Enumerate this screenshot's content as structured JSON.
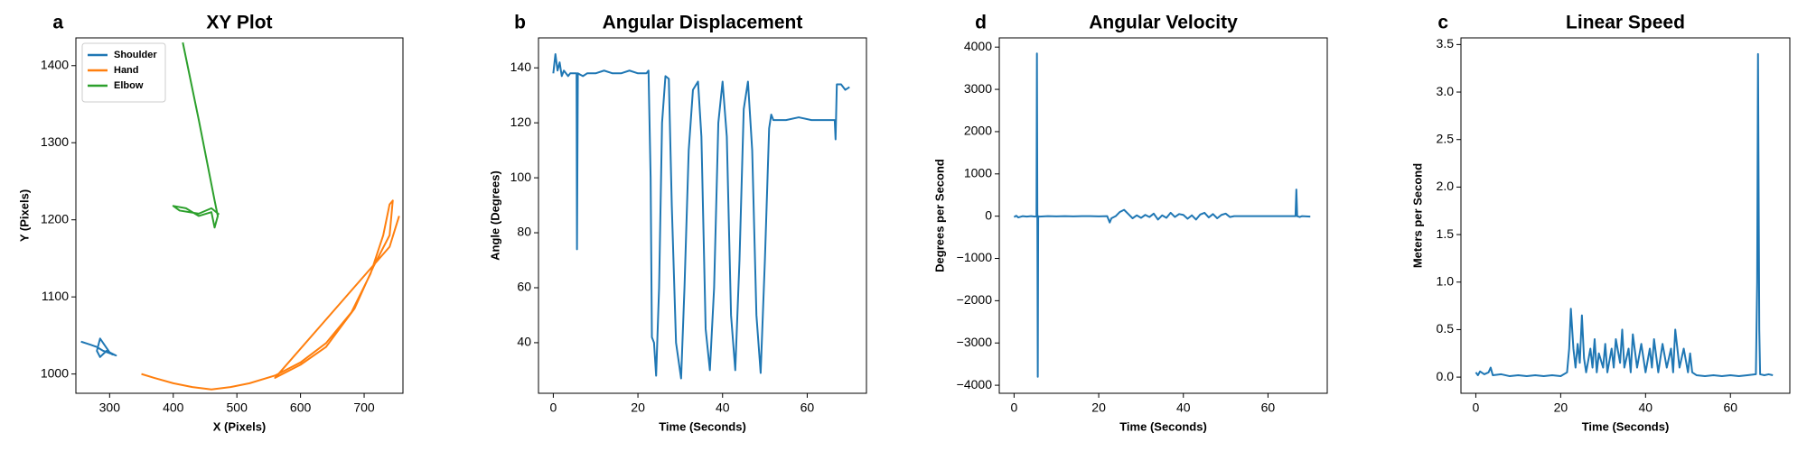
{
  "chart_data": [
    {
      "type": "line",
      "panel_label": "a",
      "title": "XY Plot",
      "xlabel": "X (Pixels)",
      "ylabel": "Y (Pixels)",
      "xlim": [
        247,
        761
      ],
      "ylim": [
        975,
        1436
      ],
      "xticks": [
        300,
        400,
        500,
        600,
        700
      ],
      "yticks": [
        1000,
        1100,
        1200,
        1300,
        1400
      ],
      "legend": "upper left",
      "series": [
        {
          "name": "Shoulder",
          "color": "#1f77b4",
          "x": [
            255,
            270,
            280,
            290,
            300,
            310,
            300,
            290,
            285,
            280,
            285,
            295,
            305
          ],
          "values": [
            1042,
            1038,
            1035,
            1030,
            1027,
            1024,
            1028,
            1040,
            1046,
            1030,
            1022,
            1030,
            1025
          ]
        },
        {
          "name": "Hand",
          "color": "#ff7f0e",
          "x": [
            350,
            370,
            400,
            430,
            460,
            490,
            520,
            560,
            600,
            640,
            680,
            710,
            730,
            740,
            745,
            740,
            715,
            685,
            640,
            600,
            560,
            740,
            755
          ],
          "values": [
            1000,
            995,
            988,
            983,
            980,
            983,
            988,
            998,
            1015,
            1040,
            1080,
            1130,
            1180,
            1220,
            1225,
            1180,
            1140,
            1085,
            1035,
            1012,
            995,
            1165,
            1205
          ]
        },
        {
          "name": "Elbow",
          "color": "#2ca02c",
          "x": [
            415,
            440,
            465,
            470,
            465,
            460,
            440,
            420,
            400,
            410,
            440,
            460,
            472
          ],
          "values": [
            1430,
            1330,
            1225,
            1205,
            1190,
            1210,
            1205,
            1215,
            1218,
            1212,
            1208,
            1215,
            1207
          ]
        }
      ]
    },
    {
      "type": "line",
      "panel_label": "b",
      "title": "Angular Displacement",
      "xlabel": "Time (Seconds)",
      "ylabel": "Angle (Degrees)",
      "xlim": [
        -3.5,
        74
      ],
      "ylim": [
        21.6,
        150.9
      ],
      "xticks": [
        0,
        20,
        40,
        60
      ],
      "yticks": [
        40,
        60,
        80,
        100,
        120,
        140
      ],
      "x": [
        0,
        0.5,
        1,
        1.5,
        2,
        2.5,
        3,
        3.5,
        4,
        5,
        5.5,
        5.6,
        5.8,
        7,
        8,
        10,
        12,
        14,
        16,
        18,
        20,
        22,
        22.5,
        23,
        23.3,
        23.8,
        24.3,
        25,
        25.7,
        26.5,
        27.3,
        28,
        29,
        30.2,
        31,
        32,
        33,
        34.2,
        35,
        36,
        37,
        38,
        39,
        40,
        41,
        42,
        43,
        44,
        45,
        46,
        47,
        48,
        49,
        50,
        51,
        51.5,
        52,
        55,
        58,
        61,
        64,
        66.5,
        66.7,
        67,
        68,
        69,
        70
      ],
      "series": [
        {
          "color": "#1f77b4",
          "values": [
            138,
            145,
            139,
            142,
            137,
            139,
            138,
            137,
            138,
            138,
            138,
            74,
            138,
            137,
            138,
            138,
            139,
            138,
            138,
            139,
            138,
            138,
            139,
            100,
            42,
            40,
            28,
            60,
            120,
            137,
            136,
            90,
            40,
            27,
            60,
            110,
            132,
            135,
            115,
            45,
            30,
            60,
            120,
            135,
            115,
            50,
            30,
            70,
            125,
            135,
            110,
            50,
            29,
            70,
            118,
            123,
            121,
            121,
            122,
            121,
            121,
            121,
            114,
            134,
            134,
            132,
            133
          ]
        }
      ]
    },
    {
      "type": "line",
      "panel_label": "d",
      "title": "Angular Velocity",
      "xlabel": "Time (Seconds)",
      "ylabel": "Degrees per Second",
      "xlim": [
        -3.5,
        74
      ],
      "ylim": [
        -4190,
        4218
      ],
      "xticks": [
        0,
        20,
        40,
        60
      ],
      "yticks": [
        {
          "value": -4000,
          "label": "−4000"
        },
        {
          "value": -3000,
          "label": "−3000"
        },
        {
          "value": -2000,
          "label": "−2000"
        },
        {
          "value": -1000,
          "label": "−1000"
        },
        0,
        1000,
        2000,
        3000,
        4000
      ],
      "x": [
        0,
        0.5,
        1,
        2,
        3,
        4,
        5,
        5.3,
        5.4,
        5.5,
        5.6,
        5.7,
        6,
        8,
        10,
        12,
        14,
        16,
        18,
        20,
        22,
        22.6,
        23,
        24,
        25,
        26,
        27,
        28,
        29,
        30,
        31,
        32,
        33,
        34,
        35,
        36,
        37,
        38,
        39,
        40,
        41,
        42,
        43,
        44,
        45,
        46,
        47,
        48,
        49,
        50,
        51,
        52,
        55,
        58,
        61,
        64,
        66.5,
        66.7,
        66.9,
        67.5,
        68,
        70
      ],
      "series": [
        {
          "color": "#1f77b4",
          "values": [
            -20,
            10,
            -30,
            0,
            -10,
            0,
            -10,
            0,
            3850,
            0,
            -3800,
            0,
            -10,
            0,
            -5,
            0,
            -5,
            0,
            0,
            -5,
            0,
            -150,
            -50,
            0,
            100,
            150,
            50,
            -50,
            20,
            -40,
            30,
            -20,
            60,
            -80,
            20,
            -40,
            80,
            -20,
            50,
            30,
            -60,
            20,
            -80,
            40,
            80,
            -30,
            50,
            -50,
            30,
            60,
            -20,
            0,
            0,
            0,
            0,
            0,
            0,
            630,
            0,
            -20,
            0,
            -10
          ]
        }
      ]
    },
    {
      "type": "line",
      "panel_label": "c",
      "title": "Linear Speed",
      "xlabel": "Time (Seconds)",
      "ylabel": "Meters per Second",
      "xlim": [
        -3.5,
        74
      ],
      "ylim": [
        -0.17,
        3.57
      ],
      "xticks": [
        0,
        20,
        40,
        60
      ],
      "yticks": [
        {
          "value": 0,
          "label": "0.0"
        },
        0.5,
        {
          "value": 1,
          "label": "1.0"
        },
        1.5,
        {
          "value": 2,
          "label": "2.0"
        },
        2.5,
        {
          "value": 3,
          "label": "3.0"
        },
        3.5
      ],
      "x": [
        0,
        0.5,
        1,
        2,
        3,
        3.5,
        4,
        6,
        8,
        10,
        12,
        14,
        16,
        18,
        20,
        21.5,
        22,
        22.4,
        23,
        23.5,
        24,
        24.5,
        25,
        25.5,
        26,
        27,
        27.5,
        28,
        28.5,
        29,
        30,
        30.5,
        31,
        32,
        32.5,
        33,
        34,
        34.5,
        35,
        36,
        36.5,
        37,
        38,
        39,
        40,
        41,
        41.5,
        42,
        43,
        44,
        45,
        46,
        46.5,
        47,
        48,
        49,
        50,
        50.5,
        51,
        52,
        54,
        56,
        58,
        60,
        62,
        64,
        66,
        66.3,
        66.5,
        66.8,
        67,
        68,
        69,
        70
      ],
      "series": [
        {
          "color": "#1f77b4",
          "values": [
            0.05,
            0.02,
            0.06,
            0.03,
            0.05,
            0.1,
            0.02,
            0.03,
            0.01,
            0.02,
            0.01,
            0.02,
            0.01,
            0.02,
            0.01,
            0.05,
            0.3,
            0.72,
            0.3,
            0.1,
            0.35,
            0.15,
            0.65,
            0.2,
            0.05,
            0.3,
            0.1,
            0.4,
            0.05,
            0.25,
            0.1,
            0.35,
            0.05,
            0.3,
            0.1,
            0.4,
            0.15,
            0.5,
            0.1,
            0.3,
            0.05,
            0.45,
            0.1,
            0.35,
            0.05,
            0.3,
            0.1,
            0.4,
            0.05,
            0.35,
            0.1,
            0.3,
            0.05,
            0.5,
            0.1,
            0.3,
            0.05,
            0.25,
            0.05,
            0.02,
            0.01,
            0.02,
            0.01,
            0.02,
            0.01,
            0.02,
            0.03,
            1.0,
            3.4,
            0.5,
            0.03,
            0.02,
            0.03,
            0.02
          ]
        }
      ]
    }
  ]
}
